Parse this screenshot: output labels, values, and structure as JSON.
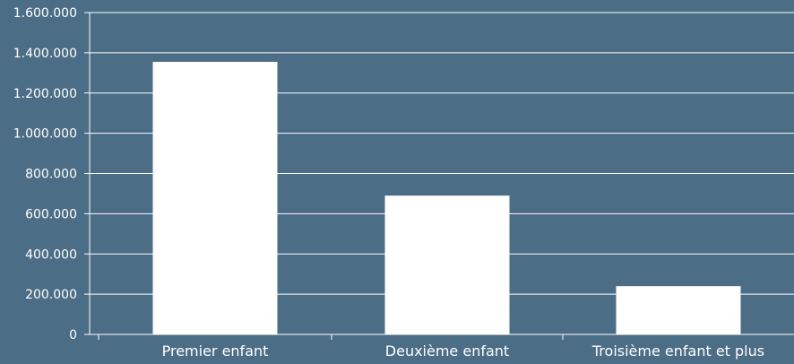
{
  "colors": {
    "background": "#4b6d86",
    "bar": "#ffffff",
    "grid": "#ffffff",
    "text": "#ffffff"
  },
  "chart_data": {
    "type": "bar",
    "categories": [
      "Premier enfant",
      "Deuxième enfant",
      "Troisième enfant et plus"
    ],
    "values": [
      1355000,
      690000,
      240000
    ],
    "ylim": [
      0,
      1600000
    ],
    "yticks": [
      0,
      200000,
      400000,
      600000,
      800000,
      1000000,
      1200000,
      1400000,
      1600000
    ],
    "ytick_labels": [
      "0",
      "200.000",
      "400.000",
      "600.000",
      "800.000",
      "1.000.000",
      "1.200.000",
      "1.400.000",
      "1.600.000"
    ],
    "grid": true,
    "legend": "none"
  }
}
